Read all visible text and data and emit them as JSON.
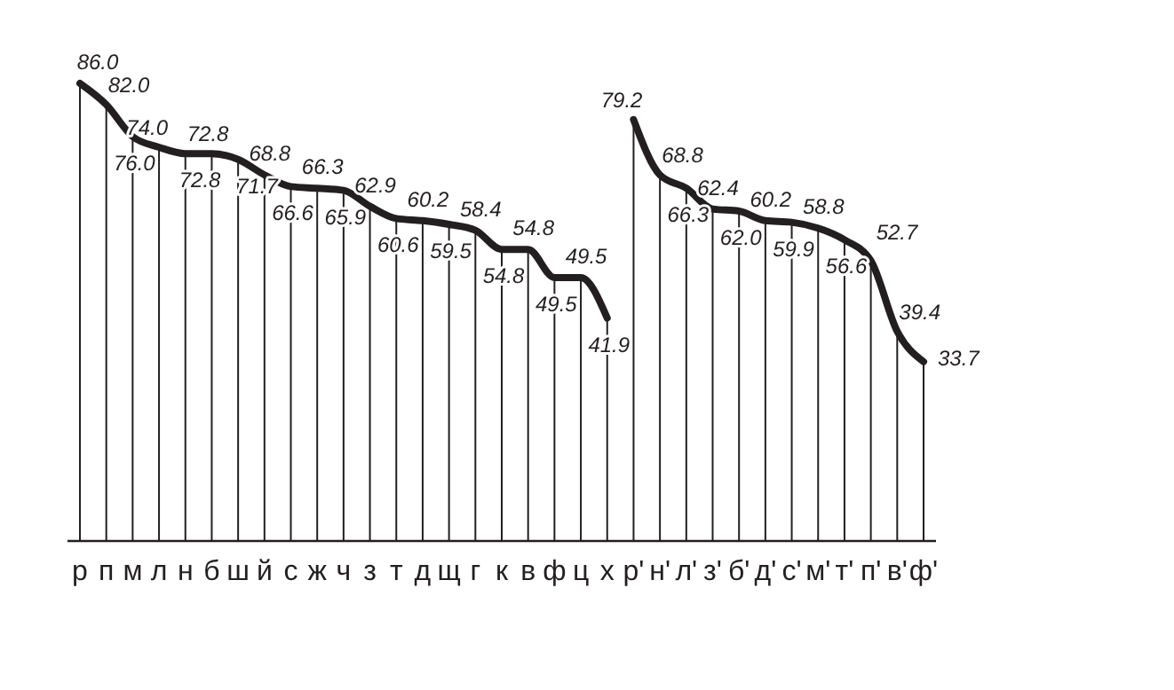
{
  "chart_data": {
    "type": "line",
    "categories": [
      "р",
      "п",
      "м",
      "л",
      "н",
      "б",
      "ш",
      "й",
      "с",
      "ж",
      "ч",
      "з",
      "т",
      "д",
      "щ",
      "г",
      "к",
      "в",
      "ф",
      "ц",
      "х",
      "р'",
      "н'",
      "л'",
      "з'",
      "б'",
      "д'",
      "с'",
      "м'",
      "т'",
      "п'",
      "в'",
      "ф'"
    ],
    "series": [
      {
        "color": "#231f20",
        "values": [
          86.0,
          82.0,
          76.0,
          74.0,
          72.8,
          72.8,
          71.7,
          68.8,
          66.6,
          66.3,
          65.9,
          62.9,
          60.6,
          60.2,
          59.5,
          58.4,
          54.8,
          54.8,
          49.5,
          49.5,
          41.9,
          null,
          null,
          null,
          null,
          null,
          null,
          null,
          null,
          null,
          null,
          null,
          null
        ],
        "value_labels": [
          "86.0",
          "82.0",
          "76.0",
          "74.0",
          "72.8",
          "72.8",
          "71.7",
          "68.8",
          "66.6",
          "66.3",
          "65.9",
          "62.9",
          "60.6",
          "60.2",
          "59.5",
          "58.4",
          "54.8",
          "54.8",
          "49.5",
          "49.5",
          "41.9",
          null,
          null,
          null,
          null,
          null,
          null,
          null,
          null,
          null,
          null,
          null,
          null
        ]
      },
      {
        "color": "#231f20",
        "values": [
          null,
          null,
          null,
          null,
          null,
          null,
          null,
          null,
          null,
          null,
          null,
          null,
          null,
          null,
          null,
          null,
          null,
          null,
          null,
          null,
          null,
          79.2,
          68.8,
          66.3,
          62.4,
          62.0,
          60.2,
          59.9,
          58.8,
          56.6,
          52.7,
          39.4,
          33.7
        ],
        "value_labels": [
          null,
          null,
          null,
          null,
          null,
          null,
          null,
          null,
          null,
          null,
          null,
          null,
          null,
          null,
          null,
          null,
          null,
          null,
          null,
          null,
          null,
          "79.2",
          "68.8",
          "66.3",
          "62.4",
          "62.0",
          "60.2",
          "59.9",
          "58.8",
          "56.6",
          "52.7",
          "39.4",
          "33.7"
        ]
      }
    ],
    "marker": "none",
    "line_style": "solid",
    "grid": "x"
  }
}
